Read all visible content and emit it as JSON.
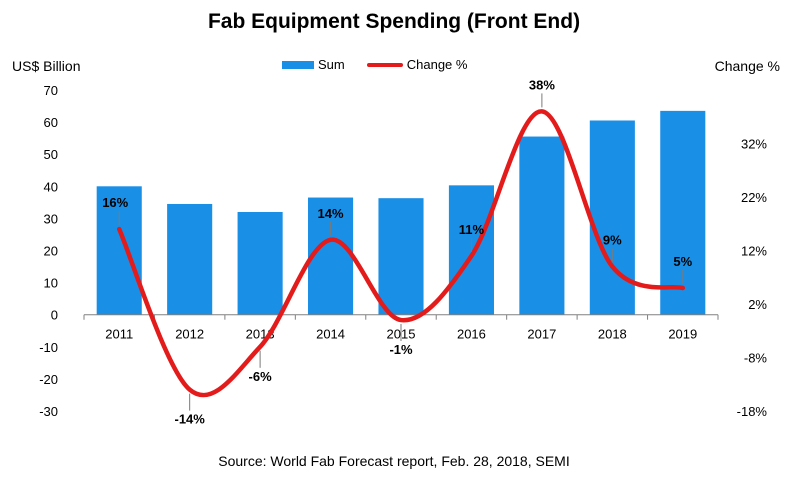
{
  "chart_data": {
    "type": "bar",
    "title": "Fab Equipment Spending (Front End)",
    "ylabel": "US$ Billion",
    "y2label": "Change %",
    "categories": [
      "2011",
      "2012",
      "2013",
      "2014",
      "2015",
      "2016",
      "2017",
      "2018",
      "2019"
    ],
    "series": [
      {
        "name": "Sum",
        "type": "bar",
        "axis": "left",
        "color": "#1a8fe6",
        "values": [
          40,
          34.5,
          32,
          36.5,
          36.3,
          40.3,
          55.5,
          60.5,
          63.5
        ]
      },
      {
        "name": "Change %",
        "type": "line",
        "axis": "right",
        "color": "#e31b1b",
        "values": [
          16,
          -14,
          -6,
          14,
          -1,
          11,
          38,
          9,
          5
        ],
        "labels": [
          "16%",
          "-14%",
          "-6%",
          "14%",
          "-1%",
          "11%",
          "38%",
          "9%",
          "5%"
        ]
      }
    ],
    "ylim": [
      -30,
      70
    ],
    "yticks": [
      "-30",
      "-20",
      "-10",
      "0",
      "10",
      "20",
      "30",
      "40",
      "50",
      "60",
      "70"
    ],
    "y2lim": [
      -18,
      42
    ],
    "y2ticks": [
      "-18%",
      "-8%",
      "2%",
      "12%",
      "22%",
      "32%"
    ],
    "legend": "top-center"
  },
  "source": "Source: World Fab Forecast report, Feb. 28, 2018, SEMI"
}
